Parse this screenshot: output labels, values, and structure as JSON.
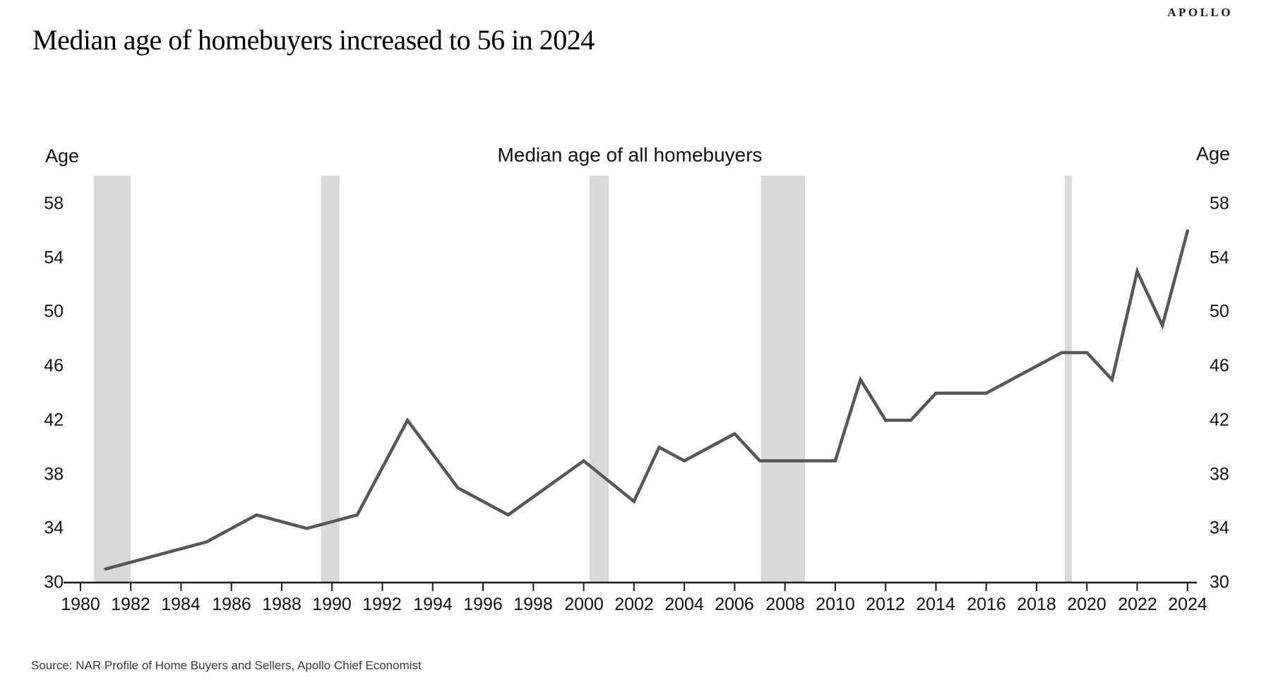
{
  "header": {
    "brand": "APOLLO",
    "title": "Median age of homebuyers increased to 56 in 2024"
  },
  "footer": {
    "source": "Source: NAR Profile of Home Buyers and Sellers, Apollo Chief Economist"
  },
  "chart_data": {
    "type": "line",
    "title": "Median age of all homebuyers",
    "series_name": "Median age of all homebuyers",
    "axis_label_left": "Age",
    "axis_label_right": "Age",
    "x": [
      1981,
      1985,
      1987,
      1989,
      1991,
      1993,
      1995,
      1997,
      2000,
      2002,
      2003,
      2004,
      2006,
      2007,
      2010,
      2011,
      2012,
      2013,
      2014,
      2016,
      2019,
      2020,
      2021,
      2022,
      2023,
      2024
    ],
    "y": [
      31,
      33,
      35,
      34,
      35,
      42,
      37,
      35,
      39,
      36,
      40,
      39,
      41,
      39,
      39,
      45,
      42,
      42,
      44,
      44,
      47,
      47,
      45,
      53,
      49,
      56
    ],
    "xticks": [
      1980,
      1982,
      1984,
      1986,
      1988,
      1990,
      1992,
      1994,
      1996,
      1998,
      2000,
      2002,
      2004,
      2006,
      2008,
      2010,
      2012,
      2014,
      2016,
      2018,
      2020,
      2022,
      2024
    ],
    "yticks": [
      30,
      34,
      38,
      42,
      46,
      50,
      54,
      58
    ],
    "xlim": [
      1979.33,
      2024.37
    ],
    "ylim": [
      30,
      60
    ],
    "grid": false,
    "legend": false,
    "line_color": "#54585a",
    "band_color": "#d9d9d9",
    "axis_color": "#1a1a1a",
    "recession_bands": [
      [
        1980.53,
        1982.0
      ],
      [
        1989.57,
        1990.3
      ],
      [
        2000.23,
        2001.0
      ],
      [
        2007.05,
        2008.8
      ],
      [
        2019.12,
        2019.4
      ]
    ]
  }
}
